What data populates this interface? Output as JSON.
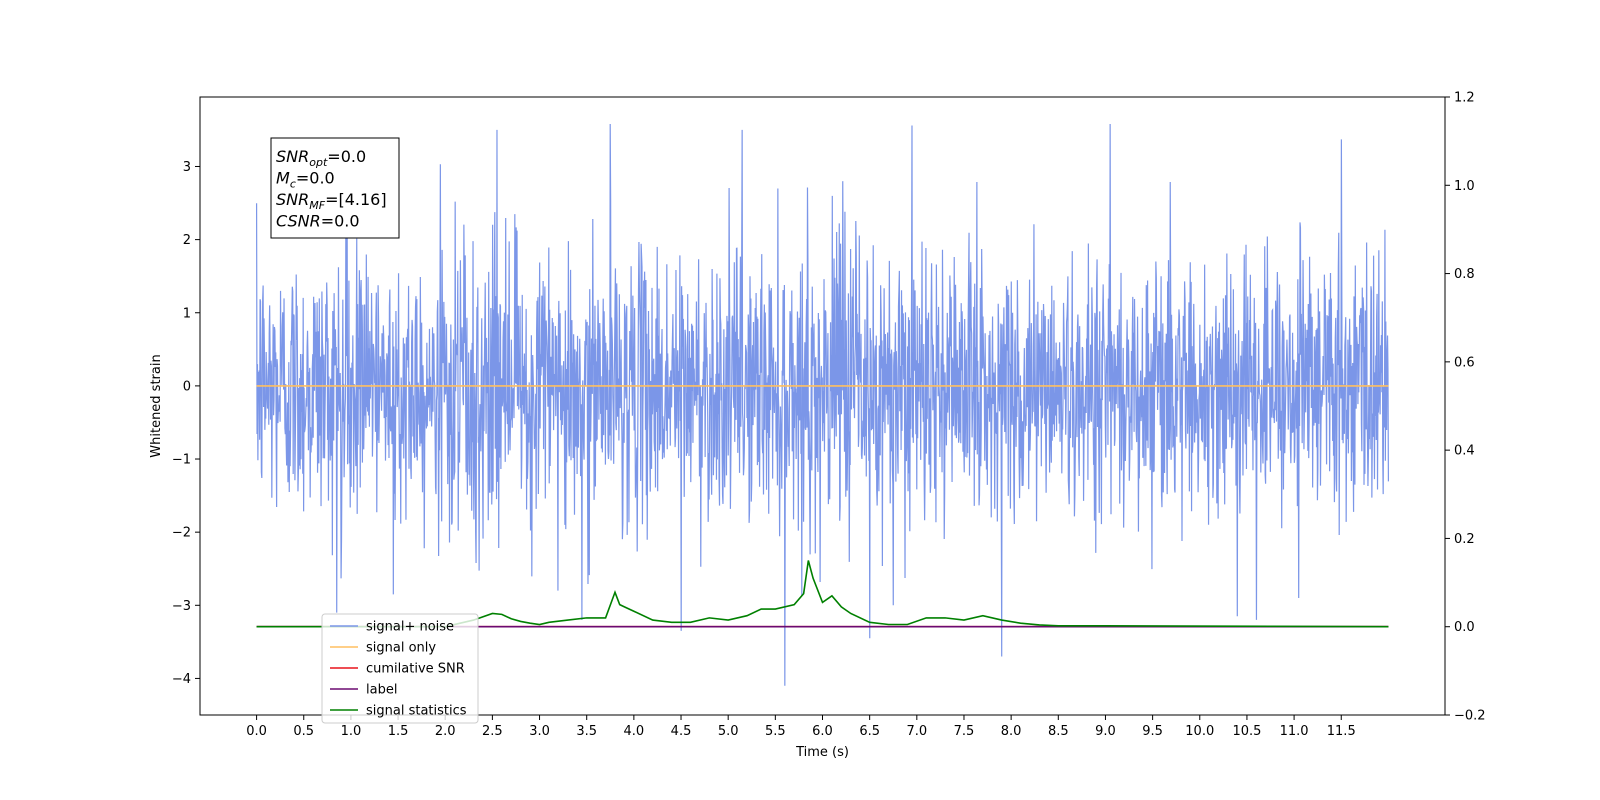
{
  "chart_data": {
    "type": "line",
    "xlabel": "Time (s)",
    "ylabel": "Whitened strain",
    "xlim": [
      -0.6,
      12.6
    ],
    "ylim": [
      -4.5,
      3.95
    ],
    "y2lim": [
      -0.2,
      1.2
    ],
    "x_ticks": [
      0.0,
      0.5,
      1.0,
      1.5,
      2.0,
      2.5,
      3.0,
      3.5,
      4.0,
      4.5,
      5.0,
      5.5,
      6.0,
      6.5,
      7.0,
      7.5,
      8.0,
      8.5,
      9.0,
      9.5,
      10.0,
      10.5,
      11.0,
      11.5
    ],
    "x_tick_labels": [
      "0.0",
      "0.5",
      "1.0",
      "1.5",
      "2.0",
      "2.5",
      "3.0",
      "3.5",
      "4.0",
      "4.5",
      "5.0",
      "5.5",
      "6.0",
      "6.5",
      "7.0",
      "7.5",
      "8.0",
      "8.5",
      "9.0",
      "9.5",
      "10.0",
      "10.5",
      "11.0",
      "11.5"
    ],
    "y_ticks": [
      -4,
      -3,
      -2,
      -1,
      0,
      1,
      2,
      3
    ],
    "y_tick_labels": [
      "−4",
      "−3",
      "−2",
      "−1",
      "0",
      "1",
      "2",
      "3"
    ],
    "y2_ticks": [
      -0.2,
      0.0,
      0.2,
      0.4,
      0.6,
      0.8,
      1.0,
      1.2
    ],
    "y2_tick_labels": [
      "−0.2",
      "0.0",
      "0.2",
      "0.4",
      "0.6",
      "0.8",
      "1.0",
      "1.2"
    ],
    "grid": false,
    "legend_position": "lower-left",
    "series": [
      {
        "name": "signal+ noise",
        "color": "#7b96e8",
        "axis": "left",
        "kind": "noise",
        "x_range": [
          0.0,
          12.0
        ],
        "std": 0.9,
        "spikes": [
          {
            "x": 0.85,
            "y": -3.1
          },
          {
            "x": 1.45,
            "y": -2.85
          },
          {
            "x": 2.55,
            "y": 3.5
          },
          {
            "x": 3.45,
            "y": -3.2
          },
          {
            "x": 3.75,
            "y": 3.58
          },
          {
            "x": 4.5,
            "y": -3.35
          },
          {
            "x": 5.15,
            "y": 3.5
          },
          {
            "x": 5.6,
            "y": -4.1
          },
          {
            "x": 6.5,
            "y": -3.45
          },
          {
            "x": 6.75,
            "y": -3.0
          },
          {
            "x": 6.95,
            "y": 3.56
          },
          {
            "x": 7.9,
            "y": -3.7
          },
          {
            "x": 9.05,
            "y": 3.58
          },
          {
            "x": 10.4,
            "y": -3.15
          },
          {
            "x": 10.6,
            "y": -3.2
          },
          {
            "x": 11.05,
            "y": -2.9
          },
          {
            "x": 11.5,
            "y": 3.37
          },
          {
            "x": 1.95,
            "y": 3.03
          }
        ]
      },
      {
        "name": "signal only",
        "color": "#ffbf60",
        "axis": "left",
        "x": [
          0.0,
          12.0
        ],
        "y": [
          0.0,
          0.0
        ]
      },
      {
        "name": "cumilative SNR",
        "color": "#e8141b",
        "axis": "right",
        "x": [
          0.0,
          12.0
        ],
        "y": [
          0.0,
          0.0
        ]
      },
      {
        "name": "label",
        "color": "#6c0a70",
        "axis": "right",
        "x": [
          0.0,
          12.0
        ],
        "y": [
          0.0,
          0.0
        ]
      },
      {
        "name": "signal statistics",
        "color": "#008000",
        "axis": "right",
        "x": [
          0.0,
          2.0,
          2.3,
          2.5,
          2.6,
          2.7,
          2.8,
          2.9,
          3.0,
          3.1,
          3.3,
          3.5,
          3.6,
          3.7,
          3.8,
          3.85,
          3.9,
          4.0,
          4.2,
          4.4,
          4.6,
          4.8,
          5.0,
          5.2,
          5.35,
          5.5,
          5.7,
          5.8,
          5.85,
          5.9,
          6.0,
          6.1,
          6.2,
          6.3,
          6.5,
          6.7,
          6.9,
          7.1,
          7.3,
          7.5,
          7.7,
          7.9,
          8.1,
          8.3,
          8.5,
          9.0,
          12.0
        ],
        "y": [
          0.0,
          0.0,
          0.015,
          0.03,
          0.028,
          0.018,
          0.012,
          0.008,
          0.005,
          0.01,
          0.015,
          0.02,
          0.02,
          0.02,
          0.078,
          0.05,
          0.045,
          0.035,
          0.015,
          0.01,
          0.01,
          0.02,
          0.015,
          0.025,
          0.04,
          0.04,
          0.05,
          0.075,
          0.15,
          0.11,
          0.055,
          0.07,
          0.045,
          0.03,
          0.01,
          0.005,
          0.005,
          0.02,
          0.02,
          0.015,
          0.025,
          0.015,
          0.008,
          0.004,
          0.002,
          0.002,
          0.0
        ]
      }
    ]
  },
  "info_box": {
    "lines": [
      {
        "name": "SNR",
        "sub": "opt",
        "value": "=0.0"
      },
      {
        "name": "M",
        "sub": "c",
        "value": "=0.0"
      },
      {
        "name": "SNR",
        "sub": "MF",
        "value": "=[4.16]"
      },
      {
        "name": "CSNR",
        "sub": "",
        "value": "=0.0"
      }
    ]
  },
  "legend": {
    "items": [
      {
        "label": "signal+ noise",
        "color": "#7b96e8"
      },
      {
        "label": "signal only",
        "color": "#ffbf60"
      },
      {
        "label": "cumilative SNR",
        "color": "#e8141b"
      },
      {
        "label": "label",
        "color": "#6c0a70"
      },
      {
        "label": "signal statistics",
        "color": "#008000"
      }
    ]
  }
}
